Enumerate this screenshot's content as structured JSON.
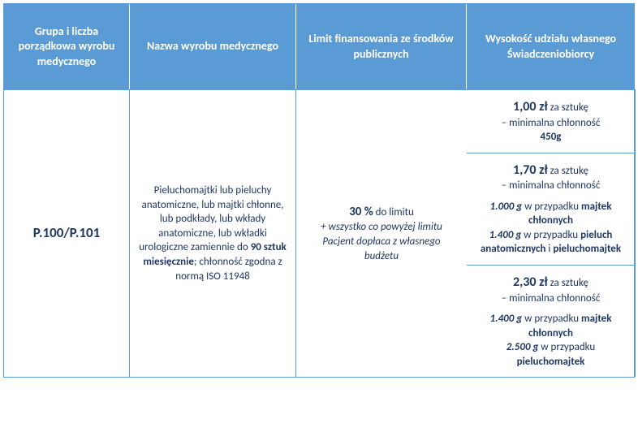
{
  "colors": {
    "header_bg": "#5b9bd5",
    "header_text": "#ffffff",
    "body_text": "#1f3864",
    "border": "#5b9bd5"
  },
  "fonts": {
    "header_size": 14,
    "body_size": 13,
    "price_size": 16,
    "code_size": 17
  },
  "headers": {
    "h1": "Grupa i liczba porządkowa wyrobu medycznego",
    "h2": "Nazwa wyrobu medycznego",
    "h3": "Limit finansowania ze środków publicznych",
    "h4": "Wysokość udziału własnego Świadczeniobiorcy"
  },
  "code": "P.100/P.101",
  "product_name": {
    "part1": "Pieluchomajtki lub pieluchy anatomiczne, lub majtki chłonne, lub podkłady, lub wkłady anatomiczne, lub wkładki urologiczne zamiennie do ",
    "qty": "90 sztuk miesięcznie",
    "part2": "; chłonność zgodna z normą ISO 11948"
  },
  "limits": {
    "row1": {
      "price": "1,00 zł",
      "per": " za sztukę",
      "line2": "– minimalna chłonność",
      "weight": "450g"
    },
    "row2": {
      "price": "1,70 zł",
      "per": " za sztukę",
      "line2": "– minimalna chłonność",
      "w1": "1.000 g",
      "t1": " w przypadku ",
      "b1": "majtek chłonnych",
      "w2": "1.400 g",
      "t2": " w przypadku ",
      "b2a": "pieluch anatomicznych",
      "and": " i ",
      "b2b": "pieluchomajtek"
    },
    "row3": {
      "price": "2,30 zł",
      "per": " za sztukę",
      "line2": "– minimalna chłonność",
      "w1": "1.400 g",
      "t1": " w przypadku ",
      "b1": "majtek chłonnych",
      "w2": "2.500 g",
      "t2": " w przypadku ",
      "b2": "pieluchomajtek"
    }
  },
  "copay": {
    "percent": "30 %",
    "to_limit": " do limitu",
    "note": "+ wszystko co powyżej limitu Pacjent dopłaca z własnego budżetu"
  }
}
